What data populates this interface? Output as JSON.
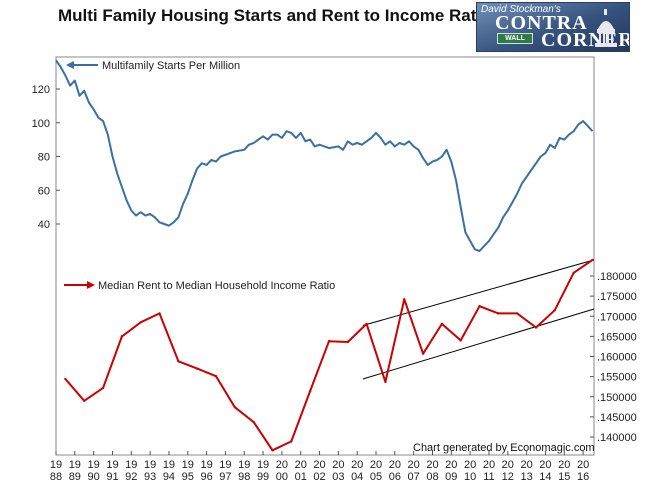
{
  "title": "Multi Family Housing Starts and Rent to Income Ratio",
  "logo": {
    "line1": "David Stockman's",
    "line2": "CONTRA",
    "line3": "CORNER",
    "sign": "WALL"
  },
  "credit": "Chart generated by Economagic.com",
  "colors": {
    "starts": "#3a6fa6",
    "ratio": "#cc0000",
    "trend": "#000000"
  },
  "chart_data": [
    {
      "type": "line",
      "series_name": "Multifamily Starts Per Million",
      "yticks": [
        40,
        60,
        80,
        100,
        120
      ],
      "ylim": [
        20,
        140
      ],
      "xlim": [
        1988,
        2016.58
      ],
      "points": [
        [
          1988.0,
          137
        ],
        [
          1988.25,
          133
        ],
        [
          1988.5,
          128
        ],
        [
          1988.75,
          122
        ],
        [
          1989.0,
          125
        ],
        [
          1989.25,
          116
        ],
        [
          1989.5,
          119
        ],
        [
          1989.75,
          112
        ],
        [
          1990.0,
          108
        ],
        [
          1990.25,
          103
        ],
        [
          1990.5,
          101
        ],
        [
          1990.75,
          93
        ],
        [
          1991.0,
          80
        ],
        [
          1991.25,
          70
        ],
        [
          1991.5,
          62
        ],
        [
          1991.75,
          54
        ],
        [
          1992.0,
          48
        ],
        [
          1992.25,
          45
        ],
        [
          1992.5,
          47
        ],
        [
          1992.75,
          45
        ],
        [
          1993.0,
          46
        ],
        [
          1993.25,
          44
        ],
        [
          1993.5,
          41
        ],
        [
          1993.75,
          40
        ],
        [
          1994.0,
          39
        ],
        [
          1994.25,
          41
        ],
        [
          1994.5,
          44
        ],
        [
          1994.75,
          52
        ],
        [
          1995.0,
          58
        ],
        [
          1995.25,
          66
        ],
        [
          1995.5,
          73
        ],
        [
          1995.75,
          76
        ],
        [
          1996.0,
          75
        ],
        [
          1996.25,
          78
        ],
        [
          1996.5,
          77
        ],
        [
          1996.75,
          80
        ],
        [
          1997.0,
          81
        ],
        [
          1997.5,
          83
        ],
        [
          1998.0,
          84
        ],
        [
          1998.25,
          87
        ],
        [
          1998.5,
          88
        ],
        [
          1998.75,
          90
        ],
        [
          1999.0,
          92
        ],
        [
          1999.25,
          90
        ],
        [
          1999.5,
          93
        ],
        [
          1999.75,
          93
        ],
        [
          2000.0,
          91
        ],
        [
          2000.25,
          95
        ],
        [
          2000.5,
          94
        ],
        [
          2000.75,
          91
        ],
        [
          2001.0,
          94
        ],
        [
          2001.25,
          89
        ],
        [
          2001.5,
          90
        ],
        [
          2001.75,
          86
        ],
        [
          2002.0,
          87
        ],
        [
          2002.5,
          85
        ],
        [
          2003.0,
          86
        ],
        [
          2003.25,
          84
        ],
        [
          2003.5,
          89
        ],
        [
          2003.75,
          87
        ],
        [
          2004.0,
          88
        ],
        [
          2004.25,
          87
        ],
        [
          2004.5,
          89
        ],
        [
          2004.75,
          91
        ],
        [
          2005.0,
          94
        ],
        [
          2005.25,
          91
        ],
        [
          2005.5,
          87
        ],
        [
          2005.75,
          89
        ],
        [
          2006.0,
          86
        ],
        [
          2006.25,
          88
        ],
        [
          2006.5,
          87
        ],
        [
          2006.75,
          89
        ],
        [
          2007.0,
          86
        ],
        [
          2007.25,
          84
        ],
        [
          2007.5,
          79
        ],
        [
          2007.75,
          75
        ],
        [
          2008.0,
          77
        ],
        [
          2008.25,
          78
        ],
        [
          2008.5,
          80
        ],
        [
          2008.75,
          84
        ],
        [
          2009.0,
          77
        ],
        [
          2009.25,
          66
        ],
        [
          2009.5,
          50
        ],
        [
          2009.75,
          35
        ],
        [
          2010.0,
          30
        ],
        [
          2010.25,
          25
        ],
        [
          2010.5,
          24
        ],
        [
          2010.75,
          27
        ],
        [
          2011.0,
          30
        ],
        [
          2011.25,
          34
        ],
        [
          2011.5,
          38
        ],
        [
          2011.75,
          44
        ],
        [
          2012.0,
          48
        ],
        [
          2012.25,
          53
        ],
        [
          2012.5,
          58
        ],
        [
          2012.75,
          64
        ],
        [
          2013.0,
          68
        ],
        [
          2013.25,
          72
        ],
        [
          2013.5,
          76
        ],
        [
          2013.75,
          80
        ],
        [
          2014.0,
          82
        ],
        [
          2014.25,
          87
        ],
        [
          2014.5,
          85
        ],
        [
          2014.75,
          91
        ],
        [
          2015.0,
          90
        ],
        [
          2015.25,
          93
        ],
        [
          2015.5,
          95
        ],
        [
          2015.75,
          99
        ],
        [
          2016.0,
          101
        ],
        [
          2016.25,
          98
        ],
        [
          2016.5,
          95
        ]
      ]
    },
    {
      "type": "line",
      "series_name": "Median Rent to Median Household Income Ratio",
      "yticks": [
        0.14,
        0.145,
        0.15,
        0.155,
        0.16,
        0.165,
        0.17,
        0.175,
        0.18
      ],
      "ytick_labels": [
        ".140000",
        ".145000",
        ".150000",
        ".155000",
        ".160000",
        ".165000",
        ".170000",
        ".175000",
        ".180000"
      ],
      "ylim": [
        0.1365,
        0.1835
      ],
      "xlim": [
        1988,
        2016.58
      ],
      "points": [
        [
          1988.5,
          0.1544
        ],
        [
          1989.5,
          0.149
        ],
        [
          1990.5,
          0.1522
        ],
        [
          1991.5,
          0.165
        ],
        [
          1992.5,
          0.1685
        ],
        [
          1993.5,
          0.1707
        ],
        [
          1994.5,
          0.1588
        ],
        [
          1995.5,
          0.157
        ],
        [
          1996.5,
          0.1551
        ],
        [
          1997.5,
          0.1474
        ],
        [
          1998.5,
          0.1437
        ],
        [
          1999.5,
          0.1367
        ],
        [
          2000.5,
          0.1389
        ],
        [
          2001.5,
          0.1514
        ],
        [
          2002.5,
          0.1638
        ],
        [
          2003.5,
          0.1636
        ],
        [
          2004.5,
          0.1681
        ],
        [
          2005.5,
          0.1537
        ],
        [
          2006.5,
          0.1742
        ],
        [
          2007.5,
          0.1607
        ],
        [
          2008.5,
          0.1681
        ],
        [
          2009.5,
          0.164
        ],
        [
          2010.5,
          0.1725
        ],
        [
          2011.5,
          0.1707
        ],
        [
          2012.5,
          0.1707
        ],
        [
          2013.5,
          0.1672
        ],
        [
          2014.5,
          0.1715
        ],
        [
          2015.5,
          0.1808
        ],
        [
          2016.5,
          0.184
        ]
      ],
      "trend_lines": [
        {
          "x": [
            2004.3,
            2016.58
          ],
          "y": [
            0.1677,
            0.184
          ]
        },
        {
          "x": [
            2004.3,
            2016.58
          ],
          "y": [
            0.1544,
            0.1718
          ]
        }
      ]
    }
  ],
  "xaxis": {
    "year_start": 1988,
    "year_end": 2016.58,
    "labels": [
      [
        "19",
        "88"
      ],
      [
        "19",
        "89"
      ],
      [
        "19",
        "90"
      ],
      [
        "19",
        "91"
      ],
      [
        "19",
        "92"
      ],
      [
        "19",
        "93"
      ],
      [
        "19",
        "94"
      ],
      [
        "19",
        "95"
      ],
      [
        "19",
        "96"
      ],
      [
        "19",
        "97"
      ],
      [
        "19",
        "98"
      ],
      [
        "19",
        "99"
      ],
      [
        "20",
        "00"
      ],
      [
        "20",
        "01"
      ],
      [
        "20",
        "02"
      ],
      [
        "20",
        "03"
      ],
      [
        "20",
        "04"
      ],
      [
        "20",
        "05"
      ],
      [
        "20",
        "06"
      ],
      [
        "20",
        "07"
      ],
      [
        "20",
        "08"
      ],
      [
        "20",
        "09"
      ],
      [
        "20",
        "10"
      ],
      [
        "20",
        "11"
      ],
      [
        "20",
        "12"
      ],
      [
        "20",
        "13"
      ],
      [
        "20",
        "14"
      ],
      [
        "20",
        "15"
      ],
      [
        "20",
        "16"
      ]
    ]
  }
}
